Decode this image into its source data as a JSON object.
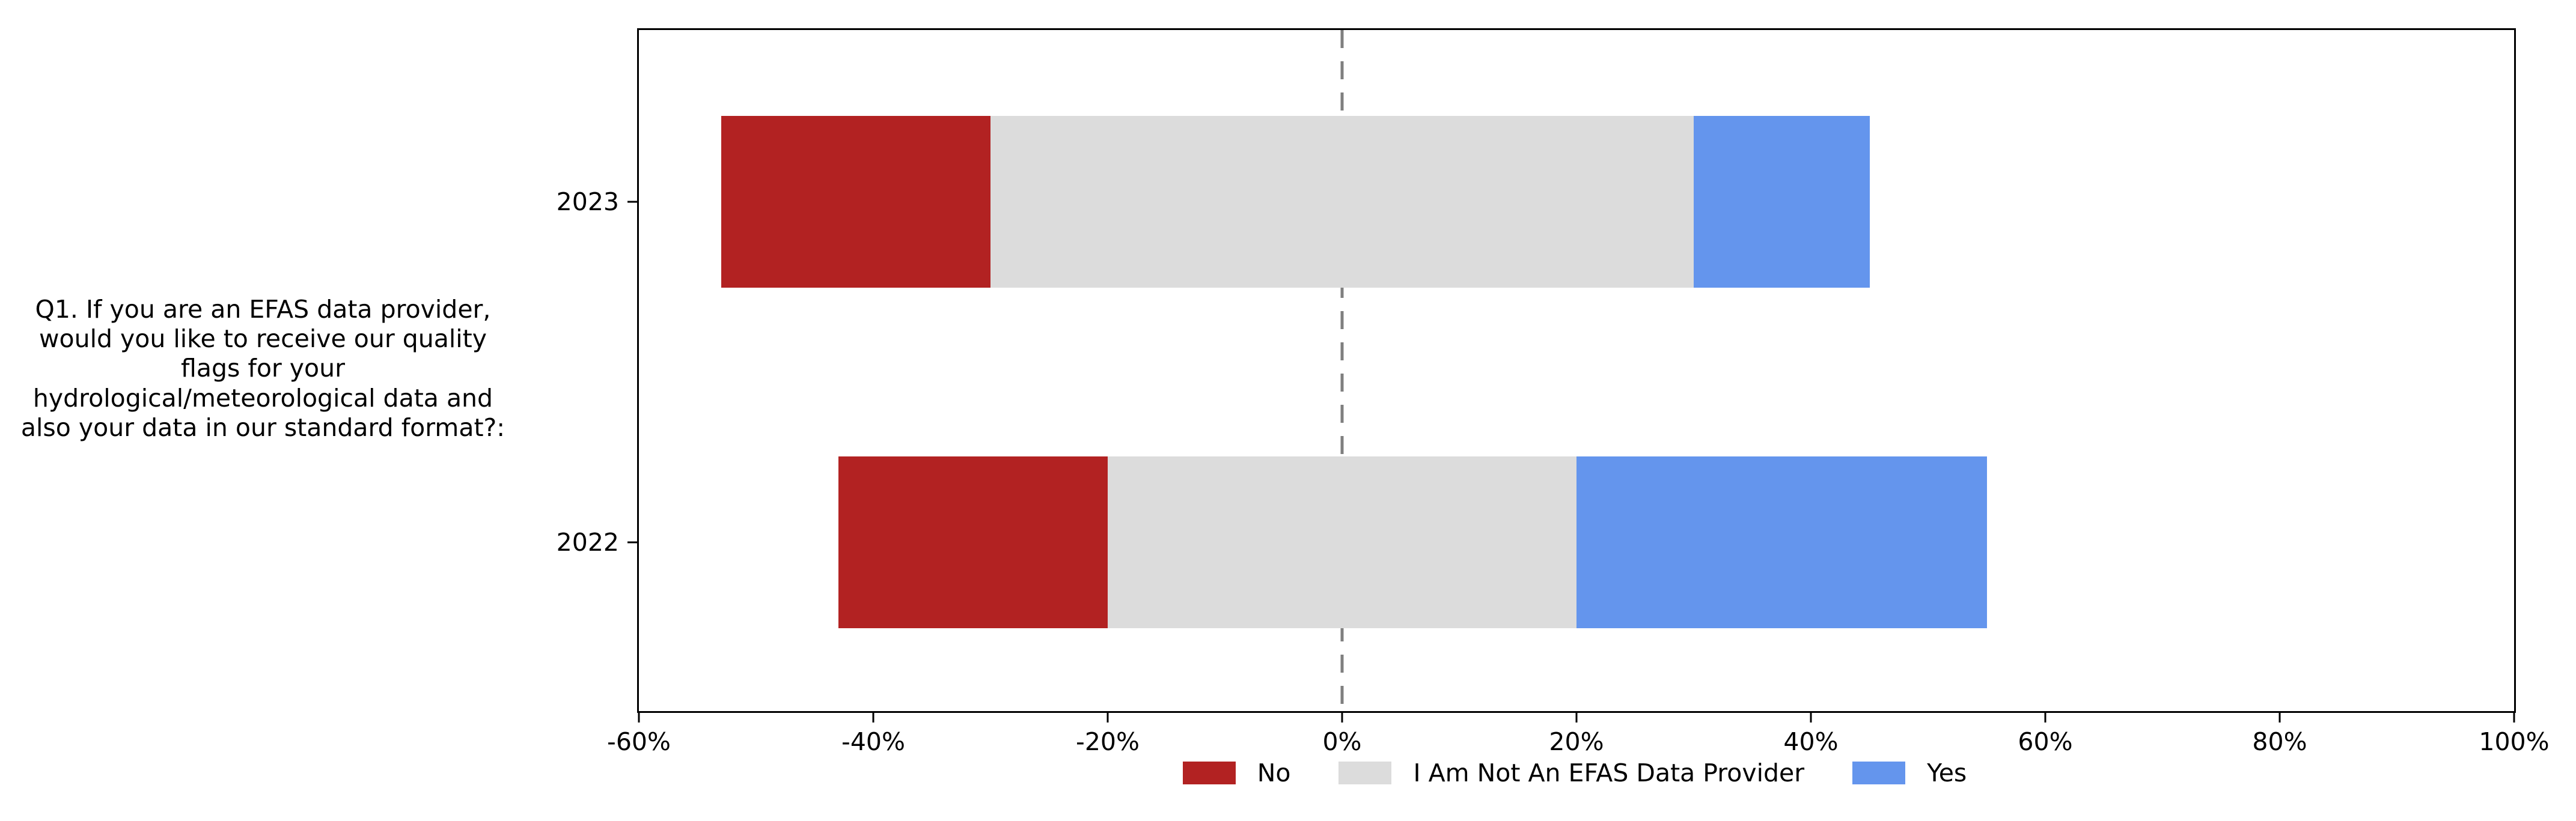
{
  "figure": {
    "background": "#ffffff",
    "text_color": "#000000"
  },
  "question_label": "Q1. If you are an EFAS data provider,\nwould you like to receive our quality\nflags for your\nhydrological/meteorological data and\nalso your data in our standard format?:",
  "chart_data": {
    "type": "bar",
    "variant": "diverging-stacked-horizontal",
    "title": "",
    "ylabel": "Q1. If you are an EFAS data provider, would you like to receive our quality flags for your hydrological/meteorological data and also your data in our standard format?:",
    "categories": [
      "2023",
      "2022"
    ],
    "series": [
      {
        "name": "No",
        "color": "#b22222",
        "values": [
          23,
          23
        ],
        "spans": [
          [
            -53,
            -30
          ],
          [
            -43,
            -20
          ]
        ]
      },
      {
        "name": "I Am Not An EFAS Data Provider",
        "color": "#dcdcdc",
        "values": [
          60,
          40
        ],
        "spans": [
          [
            -30,
            30
          ],
          [
            -20,
            20
          ]
        ]
      },
      {
        "name": "Yes",
        "color": "#6495ed",
        "values": [
          15,
          35
        ],
        "spans": [
          [
            30,
            45
          ],
          [
            20,
            55
          ]
        ]
      }
    ],
    "xlim": [
      -60,
      100
    ],
    "xticks": [
      {
        "value": -60,
        "label": "-60%"
      },
      {
        "value": -40,
        "label": "-40%"
      },
      {
        "value": -20,
        "label": "-20%"
      },
      {
        "value": 0,
        "label": "0%"
      },
      {
        "value": 20,
        "label": "20%"
      },
      {
        "value": 40,
        "label": "40%"
      },
      {
        "value": 60,
        "label": "60%"
      },
      {
        "value": 80,
        "label": "80%"
      },
      {
        "value": 100,
        "label": "100%"
      }
    ],
    "zero_line": {
      "x": 0,
      "style": "dashed",
      "color": "#7f7f7f"
    },
    "grid": false,
    "legend_position": "bottom-center",
    "legend_entries": [
      "No",
      "I Am Not An EFAS Data Provider",
      "Yes"
    ]
  }
}
